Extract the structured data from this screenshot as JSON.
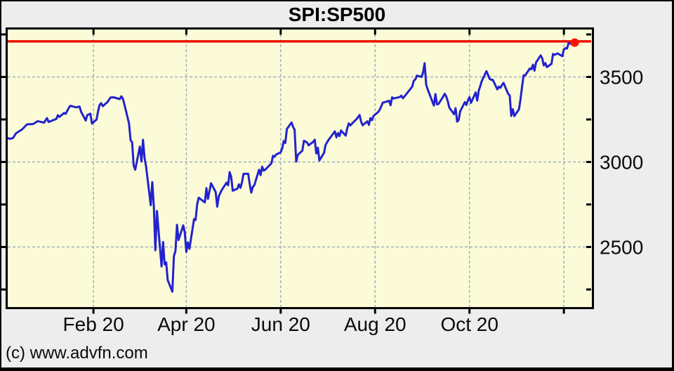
{
  "window": {
    "title": "SPI:SP500"
  },
  "footer": {
    "copyright": "(c) www.advfn.com"
  },
  "chart_data": {
    "type": "line",
    "title": "SPI:SP500",
    "symbol": "SPI:SP500",
    "legend": "none",
    "grid": "dashed",
    "last_price": 3702,
    "last_price_line_value": 3709,
    "ylim": [
      2130,
      3770
    ],
    "y_axis": {
      "side": "right",
      "labeled_ticks": [
        3500,
        3000,
        2500
      ],
      "minor_tick_step": 250,
      "minor_tick_min": 2250,
      "minor_tick_max": 3750
    },
    "x_axis": {
      "day0": "2019-12-06",
      "ticks": [
        {
          "day": 57,
          "label": "Feb 20"
        },
        {
          "day": 117,
          "label": "Apr 20"
        },
        {
          "day": 178,
          "label": "Jun 20"
        },
        {
          "day": 239,
          "label": "Aug 20"
        },
        {
          "day": 300,
          "label": "Oct 20"
        },
        {
          "day": 361,
          "label": ""
        }
      ]
    },
    "colors": {
      "page_bg": "#ededed",
      "plot_bg": "#fbfbd8",
      "frame": "#000000",
      "grid": "#a0b2bd",
      "line": "#2222ce",
      "last_price_line": "#ee1202",
      "dot": "#ff1100",
      "label": "#0a0a0a"
    },
    "series": [
      {
        "name": "SPI:SP500",
        "points": [
          [
            0,
            3146
          ],
          [
            3,
            3136
          ],
          [
            5,
            3141
          ],
          [
            7,
            3169
          ],
          [
            11,
            3192
          ],
          [
            14,
            3221
          ],
          [
            18,
            3223
          ],
          [
            21,
            3240
          ],
          [
            25,
            3231
          ],
          [
            27,
            3258
          ],
          [
            28,
            3235
          ],
          [
            31,
            3246
          ],
          [
            33,
            3253
          ],
          [
            34,
            3275
          ],
          [
            35,
            3265
          ],
          [
            38,
            3288
          ],
          [
            39,
            3283
          ],
          [
            41,
            3317
          ],
          [
            42,
            3330
          ],
          [
            46,
            3321
          ],
          [
            48,
            3326
          ],
          [
            49,
            3295
          ],
          [
            52,
            3244
          ],
          [
            53,
            3276
          ],
          [
            55,
            3284
          ],
          [
            56,
            3226
          ],
          [
            59,
            3249
          ],
          [
            60,
            3298
          ],
          [
            61,
            3335
          ],
          [
            62,
            3346
          ],
          [
            63,
            3328
          ],
          [
            66,
            3352
          ],
          [
            68,
            3379
          ],
          [
            70,
            3380
          ],
          [
            74,
            3370
          ],
          [
            75,
            3386
          ],
          [
            76,
            3373
          ],
          [
            77,
            3338
          ],
          [
            80,
            3226
          ],
          [
            81,
            3128
          ],
          [
            82,
            3116
          ],
          [
            83,
            2979
          ],
          [
            84,
            2954
          ],
          [
            87,
            3090
          ],
          [
            88,
            3003
          ],
          [
            89,
            3130
          ],
          [
            90,
            3024
          ],
          [
            91,
            2972
          ],
          [
            94,
            2746
          ],
          [
            95,
            2882
          ],
          [
            96,
            2741
          ],
          [
            97,
            2481
          ],
          [
            98,
            2711
          ],
          [
            101,
            2386
          ],
          [
            102,
            2529
          ],
          [
            103,
            2398
          ],
          [
            104,
            2409
          ],
          [
            105,
            2305
          ],
          [
            108,
            2237
          ],
          [
            109,
            2447
          ],
          [
            110,
            2476
          ],
          [
            111,
            2630
          ],
          [
            112,
            2541
          ],
          [
            115,
            2627
          ],
          [
            116,
            2585
          ],
          [
            117,
            2471
          ],
          [
            118,
            2527
          ],
          [
            119,
            2489
          ],
          [
            122,
            2664
          ],
          [
            123,
            2659
          ],
          [
            124,
            2750
          ],
          [
            125,
            2790
          ],
          [
            129,
            2762
          ],
          [
            130,
            2846
          ],
          [
            131,
            2783
          ],
          [
            133,
            2875
          ],
          [
            136,
            2823
          ],
          [
            137,
            2737
          ],
          [
            138,
            2799
          ],
          [
            140,
            2837
          ],
          [
            143,
            2878
          ],
          [
            144,
            2863
          ],
          [
            145,
            2940
          ],
          [
            146,
            2912
          ],
          [
            147,
            2831
          ],
          [
            150,
            2843
          ],
          [
            151,
            2868
          ],
          [
            152,
            2848
          ],
          [
            153,
            2881
          ],
          [
            154,
            2930
          ],
          [
            157,
            2930
          ],
          [
            158,
            2870
          ],
          [
            159,
            2820
          ],
          [
            160,
            2853
          ],
          [
            161,
            2864
          ],
          [
            164,
            2954
          ],
          [
            165,
            2923
          ],
          [
            166,
            2972
          ],
          [
            167,
            2949
          ],
          [
            168,
            2955
          ],
          [
            172,
            2992
          ],
          [
            173,
            3036
          ],
          [
            174,
            3030
          ],
          [
            175,
            3044
          ],
          [
            178,
            3056
          ],
          [
            179,
            3081
          ],
          [
            180,
            3123
          ],
          [
            181,
            3112
          ],
          [
            182,
            3194
          ],
          [
            185,
            3232
          ],
          [
            186,
            3207
          ],
          [
            187,
            3190
          ],
          [
            188,
            3002
          ],
          [
            189,
            3041
          ],
          [
            192,
            3067
          ],
          [
            193,
            3125
          ],
          [
            195,
            3115
          ],
          [
            196,
            3098
          ],
          [
            199,
            3118
          ],
          [
            200,
            3131
          ],
          [
            201,
            3050
          ],
          [
            202,
            3084
          ],
          [
            203,
            3009
          ],
          [
            206,
            3053
          ],
          [
            207,
            3100
          ],
          [
            208,
            3116
          ],
          [
            209,
            3130
          ],
          [
            213,
            3180
          ],
          [
            214,
            3145
          ],
          [
            215,
            3170
          ],
          [
            216,
            3152
          ],
          [
            217,
            3185
          ],
          [
            220,
            3155
          ],
          [
            221,
            3198
          ],
          [
            222,
            3227
          ],
          [
            223,
            3215
          ],
          [
            224,
            3225
          ],
          [
            227,
            3252
          ],
          [
            229,
            3276
          ],
          [
            230,
            3236
          ],
          [
            231,
            3216
          ],
          [
            234,
            3239
          ],
          [
            235,
            3218
          ],
          [
            236,
            3258
          ],
          [
            237,
            3246
          ],
          [
            238,
            3271
          ],
          [
            241,
            3294
          ],
          [
            242,
            3307
          ],
          [
            243,
            3328
          ],
          [
            244,
            3349
          ],
          [
            245,
            3351
          ],
          [
            248,
            3360
          ],
          [
            249,
            3334
          ],
          [
            250,
            3380
          ],
          [
            251,
            3373
          ],
          [
            255,
            3382
          ],
          [
            256,
            3390
          ],
          [
            257,
            3375
          ],
          [
            258,
            3385
          ],
          [
            259,
            3397
          ],
          [
            262,
            3431
          ],
          [
            263,
            3444
          ],
          [
            264,
            3478
          ],
          [
            265,
            3485
          ],
          [
            266,
            3508
          ],
          [
            269,
            3500
          ],
          [
            270,
            3527
          ],
          [
            271,
            3581
          ],
          [
            272,
            3455
          ],
          [
            273,
            3427
          ],
          [
            277,
            3332
          ],
          [
            278,
            3399
          ],
          [
            279,
            3339
          ],
          [
            280,
            3341
          ],
          [
            283,
            3384
          ],
          [
            284,
            3401
          ],
          [
            285,
            3385
          ],
          [
            286,
            3357
          ],
          [
            287,
            3319
          ],
          [
            290,
            3281
          ],
          [
            291,
            3316
          ],
          [
            292,
            3237
          ],
          [
            293,
            3247
          ],
          [
            294,
            3298
          ],
          [
            297,
            3352
          ],
          [
            298,
            3335
          ],
          [
            299,
            3363
          ],
          [
            300,
            3381
          ],
          [
            301,
            3348
          ],
          [
            304,
            3409
          ],
          [
            305,
            3361
          ],
          [
            306,
            3420
          ],
          [
            307,
            3447
          ],
          [
            308,
            3477
          ],
          [
            311,
            3534
          ],
          [
            312,
            3512
          ],
          [
            313,
            3489
          ],
          [
            314,
            3483
          ],
          [
            315,
            3484
          ],
          [
            318,
            3427
          ],
          [
            319,
            3443
          ],
          [
            320,
            3436
          ],
          [
            321,
            3453
          ],
          [
            322,
            3465
          ],
          [
            325,
            3401
          ],
          [
            326,
            3391
          ],
          [
            327,
            3271
          ],
          [
            328,
            3310
          ],
          [
            329,
            3270
          ],
          [
            332,
            3310
          ],
          [
            333,
            3369
          ],
          [
            334,
            3443
          ],
          [
            335,
            3510
          ],
          [
            336,
            3509
          ],
          [
            339,
            3550
          ],
          [
            340,
            3545
          ],
          [
            341,
            3572
          ],
          [
            342,
            3537
          ],
          [
            343,
            3585
          ],
          [
            346,
            3627
          ],
          [
            347,
            3610
          ],
          [
            348,
            3568
          ],
          [
            349,
            3582
          ],
          [
            350,
            3558
          ],
          [
            353,
            3577
          ],
          [
            354,
            3635
          ],
          [
            355,
            3630
          ],
          [
            357,
            3638
          ],
          [
            360,
            3622
          ],
          [
            361,
            3662
          ],
          [
            362,
            3669
          ],
          [
            363,
            3667
          ],
          [
            364,
            3699
          ],
          [
            367,
            3692
          ],
          [
            368,
            3702
          ]
        ]
      }
    ]
  }
}
